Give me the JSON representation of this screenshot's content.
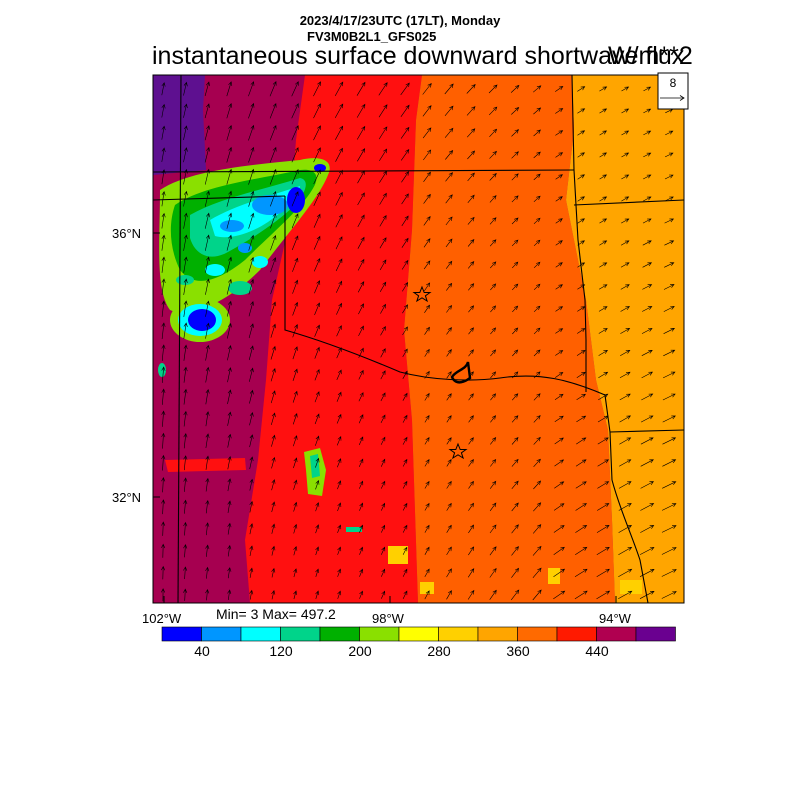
{
  "header": {
    "run_time": "2023/4/17/23UTC (17LT), Monday",
    "model": "FV3M0B2L1_GFS025",
    "title": "instantaneous surface downward shortwave flux",
    "units": "W/m**2"
  },
  "stats": {
    "label": "Min= 3 Max= 497.2"
  },
  "axes": {
    "lat_labels": [
      "36°N",
      "32°N"
    ],
    "lon_labels": [
      "102°W",
      "98°W",
      "94°W"
    ]
  },
  "vector_legend": {
    "reference_value": "8"
  },
  "colorbar": {
    "colors": [
      "#0000ff",
      "#0096ff",
      "#00ffff",
      "#00d48a",
      "#00b000",
      "#8ae000",
      "#ffff00",
      "#ffd000",
      "#ffa500",
      "#ff6a00",
      "#ff1a00",
      "#b00050",
      "#6a0090"
    ],
    "tick_labels": [
      "40",
      "120",
      "200",
      "280",
      "360",
      "440"
    ]
  },
  "map_colors": {
    "purple": "#5e1090",
    "maroon": "#a60050",
    "red": "#ff1010",
    "orange_red": "#ff6000",
    "orange": "#ffa500",
    "gold": "#ffd000",
    "yellow": "#ffff00",
    "green": "#00b000",
    "aqua_green": "#00d48a",
    "cyan": "#00ffff",
    "sky": "#0096ff",
    "blue": "#0000ff"
  }
}
